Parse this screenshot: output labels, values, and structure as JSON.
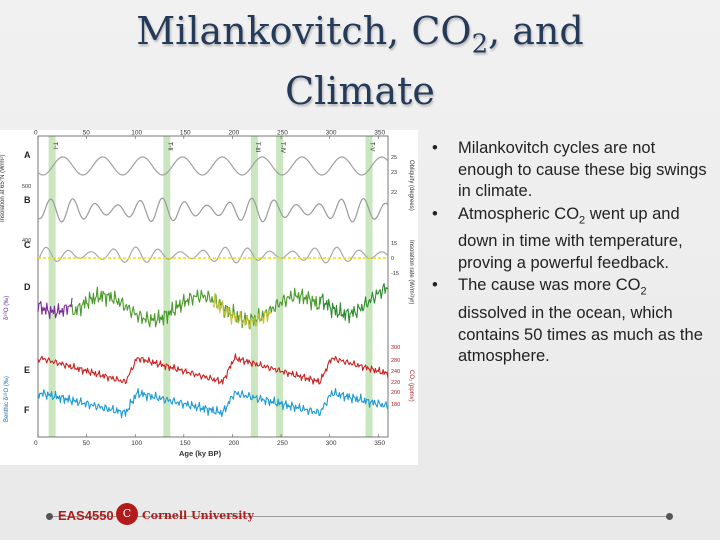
{
  "slide": {
    "title_part1": "Milankovitch, CO",
    "title_sub": "2",
    "title_part2": ", and",
    "title_line2": "Climate"
  },
  "bullets": [
    {
      "pre": "Milankovitch cycles are not enough to cause these big swings in climate.",
      "sub": "",
      "post": ""
    },
    {
      "pre": "Atmospheric CO",
      "sub": "2",
      "post": " went up and down in time with temperature, proving a powerful feedback."
    },
    {
      "pre": "The cause was more CO",
      "sub": "2",
      "post": " dissolved in the ocean, which contains 50 times as much as the atmosphere."
    }
  ],
  "footer": {
    "course": "EAS4550",
    "university": "Cornell University"
  },
  "colors": {
    "title": "#243a58",
    "footer_accent": "#b31b1b",
    "termination_band": "#9fd18a",
    "curve_D_early": "#7b2d9a",
    "curve_D_late": "#4a9a2a",
    "curve_E": "#cc2222",
    "curve_F": "#1e9ad6"
  },
  "figure": {
    "top_ticks": [
      "0",
      "50",
      "100",
      "150",
      "200",
      "250",
      "300",
      "350"
    ],
    "bottom_ticks": [
      "0",
      "50",
      "100",
      "150",
      "200",
      "250",
      "300",
      "350"
    ],
    "x_axis_label": "Age (ky BP)",
    "terminations": [
      "T-I",
      "T-II",
      "T-III",
      "T-IV",
      "T-V"
    ],
    "panel_letters": [
      "A",
      "B",
      "C",
      "D",
      "E",
      "F"
    ],
    "left_axis_insolation": "Insolation at 65°N (W/m²)",
    "left_ticks_insolation": [
      "500",
      "400"
    ],
    "left_axis_d18o": "δ¹⁸O (‰)",
    "left_axis_benthic": "Benthic δ¹⁸O (‰)",
    "right_axis_obliquity": "Obliquity (degrees)",
    "right_ticks_obliquity": [
      "25",
      "23",
      "22"
    ],
    "right_axis_insolation_rate": "Insolation rate (W/m²/yr)",
    "right_ticks_rate": [
      "15",
      "0",
      "-15"
    ],
    "right_axis_co2": "CO₂ (ppmv)",
    "right_ticks_co2": [
      "300",
      "280",
      "240",
      "220",
      "200",
      "180"
    ]
  }
}
